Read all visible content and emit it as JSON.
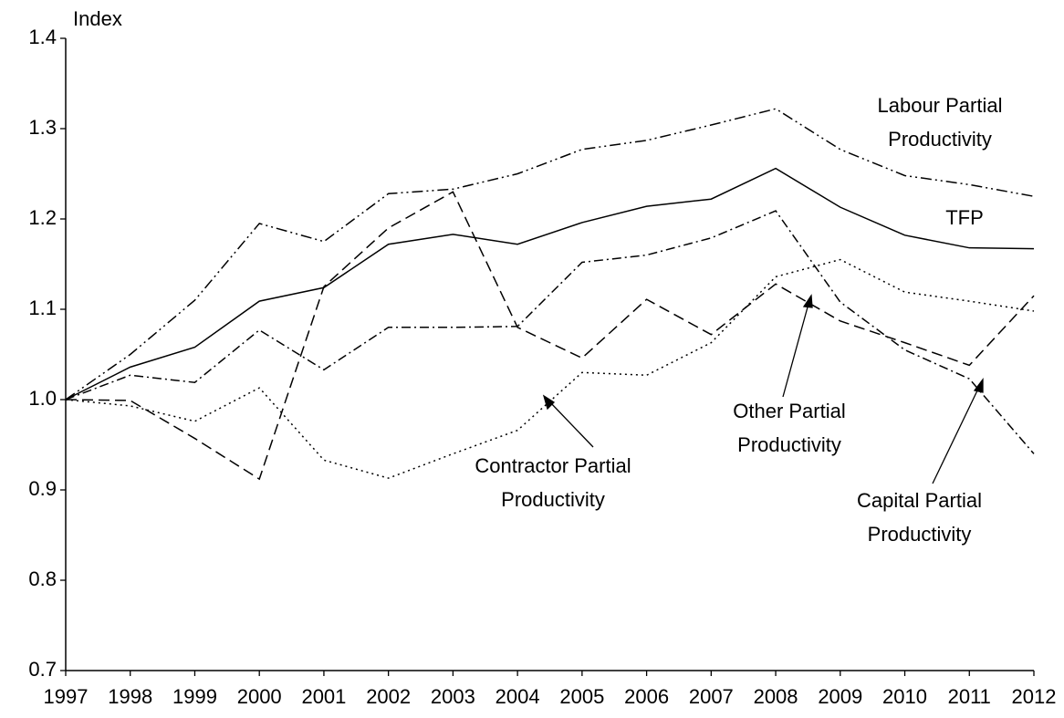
{
  "chart_data": {
    "type": "line",
    "y_label": "Index",
    "categories": [
      "1997",
      "1998",
      "1999",
      "2000",
      "2001",
      "2002",
      "2003",
      "2004",
      "2005",
      "2006",
      "2007",
      "2008",
      "2009",
      "2010",
      "2011",
      "2012"
    ],
    "ylim": [
      0.7,
      1.4
    ],
    "yticks": [
      0.7,
      0.8,
      0.9,
      {
        "value": 1.0,
        "label": "1.0"
      },
      1.1,
      1.2,
      1.3,
      1.4
    ],
    "grid": false,
    "series": [
      {
        "name": "Labour Partial Productivity",
        "color": "#000000",
        "dash": "12,4,2,4,2,4",
        "values": [
          1.0,
          1.05,
          1.11,
          1.195,
          1.175,
          1.228,
          1.233,
          1.25,
          1.277,
          1.287,
          1.304,
          1.322,
          1.277,
          1.248,
          1.238,
          1.225
        ]
      },
      {
        "name": "TFP",
        "color": "#000000",
        "dash": "none",
        "values": [
          1.0,
          1.036,
          1.058,
          1.109,
          1.124,
          1.172,
          1.183,
          1.172,
          1.196,
          1.214,
          1.222,
          1.256,
          1.213,
          1.182,
          1.168,
          1.167
        ]
      },
      {
        "name": "Capital Partial Productivity",
        "color": "#000000",
        "dash": "10,4,2,4",
        "values": [
          1.0,
          1.027,
          1.019,
          1.077,
          1.033,
          1.08,
          1.08,
          1.081,
          1.152,
          1.16,
          1.179,
          1.209,
          1.108,
          1.055,
          1.023,
          0.94
        ]
      },
      {
        "name": "Other Partial Productivity",
        "color": "#000000",
        "dash": "12,6",
        "values": [
          1.0,
          0.999,
          0.957,
          0.912,
          1.125,
          1.19,
          1.23,
          1.08,
          1.046,
          1.111,
          1.072,
          1.128,
          1.087,
          1.063,
          1.038,
          1.115
        ]
      },
      {
        "name": "Contractor Partial Productivity",
        "color": "#000000",
        "dash": "2,4",
        "values": [
          1.0,
          0.993,
          0.976,
          1.013,
          0.933,
          0.913,
          0.94,
          0.966,
          1.03,
          1.027,
          1.063,
          1.136,
          1.155,
          1.119,
          1.109,
          1.098
        ]
      }
    ]
  }
}
